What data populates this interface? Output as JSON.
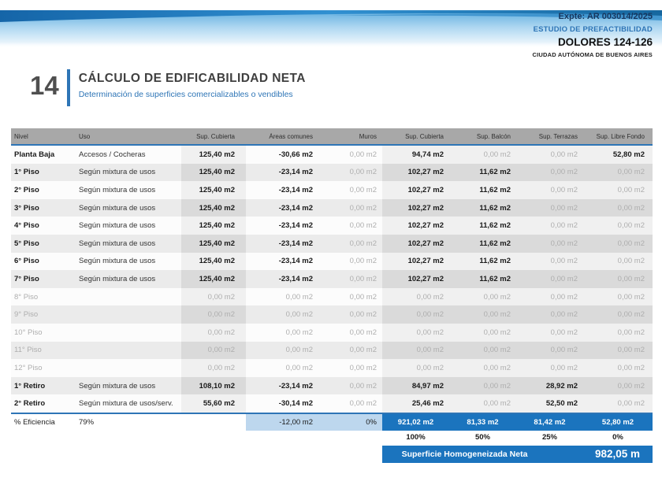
{
  "header": {
    "expte": "Expte: AR 003014/2025",
    "study_type": "ESTUDIO DE PREFACTIBILIDAD",
    "project": "DOLORES 124-126",
    "city": "CIUDAD AUTÓNOMA DE BUENOS AIRES"
  },
  "section": {
    "number": "14",
    "title": "CÁLCULO DE EDIFICABILIDAD NETA",
    "subtitle": "Determinación de superficies comercializables o vendibles"
  },
  "colors": {
    "accent_blue": "#2E75B6",
    "fill_blue": "#1B74BE",
    "light_blue": "#BDD7EE",
    "header_gray": "#A8A8A8"
  },
  "table": {
    "columns": [
      "Nivel",
      "Uso",
      "Sup. Cubierta",
      "Áreas comunes",
      "Muros",
      "Sup. Cubierta",
      "Sup. Balcón",
      "Sup. Terrazas",
      "Sup. Libre Fondo"
    ],
    "col_keys": [
      "nivel",
      "uso",
      "sup-cubierta",
      "areas-comunes",
      "muros",
      "sup-cubierta-2",
      "sup-balcon",
      "sup-terrazas",
      "sup-libre-fondo"
    ],
    "rows": [
      {
        "cells": [
          {
            "t": "Planta Baja",
            "s": "b"
          },
          {
            "t": "Accesos / Cocheras",
            "s": "n"
          },
          {
            "t": "125,40 m2",
            "s": "b"
          },
          {
            "t": "-30,66 m2",
            "s": "b"
          },
          {
            "t": "0,00 m2",
            "s": "m"
          },
          {
            "t": "94,74 m2",
            "s": "b"
          },
          {
            "t": "0,00 m2",
            "s": "m"
          },
          {
            "t": "0,00 m2",
            "s": "m"
          },
          {
            "t": "52,80 m2",
            "s": "b"
          }
        ]
      },
      {
        "cells": [
          {
            "t": "1° Piso",
            "s": "b"
          },
          {
            "t": "Según mixtura de usos",
            "s": "n"
          },
          {
            "t": "125,40 m2",
            "s": "b"
          },
          {
            "t": "-23,14 m2",
            "s": "b"
          },
          {
            "t": "0,00 m2",
            "s": "m"
          },
          {
            "t": "102,27 m2",
            "s": "b"
          },
          {
            "t": "11,62 m2",
            "s": "b"
          },
          {
            "t": "0,00 m2",
            "s": "m"
          },
          {
            "t": "0,00 m2",
            "s": "m"
          }
        ]
      },
      {
        "cells": [
          {
            "t": "2° Piso",
            "s": "b"
          },
          {
            "t": "Según mixtura de usos",
            "s": "n"
          },
          {
            "t": "125,40 m2",
            "s": "b"
          },
          {
            "t": "-23,14 m2",
            "s": "b"
          },
          {
            "t": "0,00 m2",
            "s": "m"
          },
          {
            "t": "102,27 m2",
            "s": "b"
          },
          {
            "t": "11,62 m2",
            "s": "b"
          },
          {
            "t": "0,00 m2",
            "s": "m"
          },
          {
            "t": "0,00 m2",
            "s": "m"
          }
        ]
      },
      {
        "cells": [
          {
            "t": "3° Piso",
            "s": "b"
          },
          {
            "t": "Según mixtura de usos",
            "s": "n"
          },
          {
            "t": "125,40 m2",
            "s": "b"
          },
          {
            "t": "-23,14 m2",
            "s": "b"
          },
          {
            "t": "0,00 m2",
            "s": "m"
          },
          {
            "t": "102,27 m2",
            "s": "b"
          },
          {
            "t": "11,62 m2",
            "s": "b"
          },
          {
            "t": "0,00 m2",
            "s": "m"
          },
          {
            "t": "0,00 m2",
            "s": "m"
          }
        ]
      },
      {
        "cells": [
          {
            "t": "4° Piso",
            "s": "b"
          },
          {
            "t": "Según mixtura de usos",
            "s": "n"
          },
          {
            "t": "125,40 m2",
            "s": "b"
          },
          {
            "t": "-23,14 m2",
            "s": "b"
          },
          {
            "t": "0,00 m2",
            "s": "m"
          },
          {
            "t": "102,27 m2",
            "s": "b"
          },
          {
            "t": "11,62 m2",
            "s": "b"
          },
          {
            "t": "0,00 m2",
            "s": "m"
          },
          {
            "t": "0,00 m2",
            "s": "m"
          }
        ]
      },
      {
        "cells": [
          {
            "t": "5° Piso",
            "s": "b"
          },
          {
            "t": "Según mixtura de usos",
            "s": "n"
          },
          {
            "t": "125,40 m2",
            "s": "b"
          },
          {
            "t": "-23,14 m2",
            "s": "b"
          },
          {
            "t": "0,00 m2",
            "s": "m"
          },
          {
            "t": "102,27 m2",
            "s": "b"
          },
          {
            "t": "11,62 m2",
            "s": "b"
          },
          {
            "t": "0,00 m2",
            "s": "m"
          },
          {
            "t": "0,00 m2",
            "s": "m"
          }
        ]
      },
      {
        "cells": [
          {
            "t": "6° Piso",
            "s": "b"
          },
          {
            "t": "Según mixtura de usos",
            "s": "n"
          },
          {
            "t": "125,40 m2",
            "s": "b"
          },
          {
            "t": "-23,14 m2",
            "s": "b"
          },
          {
            "t": "0,00 m2",
            "s": "m"
          },
          {
            "t": "102,27 m2",
            "s": "b"
          },
          {
            "t": "11,62 m2",
            "s": "b"
          },
          {
            "t": "0,00 m2",
            "s": "m"
          },
          {
            "t": "0,00 m2",
            "s": "m"
          }
        ]
      },
      {
        "cells": [
          {
            "t": "7° Piso",
            "s": "b"
          },
          {
            "t": "Según mixtura de usos",
            "s": "n"
          },
          {
            "t": "125,40 m2",
            "s": "b"
          },
          {
            "t": "-23,14 m2",
            "s": "b"
          },
          {
            "t": "0,00 m2",
            "s": "m"
          },
          {
            "t": "102,27 m2",
            "s": "b"
          },
          {
            "t": "11,62 m2",
            "s": "b"
          },
          {
            "t": "0,00 m2",
            "s": "m"
          },
          {
            "t": "0,00 m2",
            "s": "m"
          }
        ]
      },
      {
        "cells": [
          {
            "t": "8° Piso",
            "s": "m"
          },
          {
            "t": "",
            "s": "n"
          },
          {
            "t": "0,00 m2",
            "s": "m"
          },
          {
            "t": "0,00 m2",
            "s": "m"
          },
          {
            "t": "0,00 m2",
            "s": "m"
          },
          {
            "t": "0,00 m2",
            "s": "m"
          },
          {
            "t": "0,00 m2",
            "s": "m"
          },
          {
            "t": "0,00 m2",
            "s": "m"
          },
          {
            "t": "0,00 m2",
            "s": "m"
          }
        ]
      },
      {
        "cells": [
          {
            "t": "9° Piso",
            "s": "m"
          },
          {
            "t": "",
            "s": "n"
          },
          {
            "t": "0,00 m2",
            "s": "m"
          },
          {
            "t": "0,00 m2",
            "s": "m"
          },
          {
            "t": "0,00 m2",
            "s": "m"
          },
          {
            "t": "0,00 m2",
            "s": "m"
          },
          {
            "t": "0,00 m2",
            "s": "m"
          },
          {
            "t": "0,00 m2",
            "s": "m"
          },
          {
            "t": "0,00 m2",
            "s": "m"
          }
        ]
      },
      {
        "cells": [
          {
            "t": "10° Piso",
            "s": "m"
          },
          {
            "t": "",
            "s": "n"
          },
          {
            "t": "0,00 m2",
            "s": "m"
          },
          {
            "t": "0,00 m2",
            "s": "m"
          },
          {
            "t": "0,00 m2",
            "s": "m"
          },
          {
            "t": "0,00 m2",
            "s": "m"
          },
          {
            "t": "0,00 m2",
            "s": "m"
          },
          {
            "t": "0,00 m2",
            "s": "m"
          },
          {
            "t": "0,00 m2",
            "s": "m"
          }
        ]
      },
      {
        "cells": [
          {
            "t": "11° Piso",
            "s": "m"
          },
          {
            "t": "",
            "s": "n"
          },
          {
            "t": "0,00 m2",
            "s": "m"
          },
          {
            "t": "0,00 m2",
            "s": "m"
          },
          {
            "t": "0,00 m2",
            "s": "m"
          },
          {
            "t": "0,00 m2",
            "s": "m"
          },
          {
            "t": "0,00 m2",
            "s": "m"
          },
          {
            "t": "0,00 m2",
            "s": "m"
          },
          {
            "t": "0,00 m2",
            "s": "m"
          }
        ]
      },
      {
        "cells": [
          {
            "t": "12° Piso",
            "s": "m"
          },
          {
            "t": "",
            "s": "n"
          },
          {
            "t": "0,00 m2",
            "s": "m"
          },
          {
            "t": "0,00 m2",
            "s": "m"
          },
          {
            "t": "0,00 m2",
            "s": "m"
          },
          {
            "t": "0,00 m2",
            "s": "m"
          },
          {
            "t": "0,00 m2",
            "s": "m"
          },
          {
            "t": "0,00 m2",
            "s": "m"
          },
          {
            "t": "0,00 m2",
            "s": "m"
          }
        ]
      },
      {
        "cells": [
          {
            "t": "1° Retiro",
            "s": "b"
          },
          {
            "t": "Según mixtura de usos",
            "s": "n"
          },
          {
            "t": "108,10 m2",
            "s": "b"
          },
          {
            "t": "-23,14 m2",
            "s": "b"
          },
          {
            "t": "0,00 m2",
            "s": "m"
          },
          {
            "t": "84,97 m2",
            "s": "b"
          },
          {
            "t": "0,00 m2",
            "s": "m"
          },
          {
            "t": "28,92 m2",
            "s": "b"
          },
          {
            "t": "0,00 m2",
            "s": "m"
          }
        ]
      },
      {
        "cells": [
          {
            "t": "2° Retiro",
            "s": "b"
          },
          {
            "t": "Según mixtura de usos/serv.",
            "s": "n"
          },
          {
            "t": "55,60 m2",
            "s": "b"
          },
          {
            "t": "-30,14 m2",
            "s": "b"
          },
          {
            "t": "0,00 m2",
            "s": "m"
          },
          {
            "t": "25,46 m2",
            "s": "b"
          },
          {
            "t": "0,00 m2",
            "s": "m"
          },
          {
            "t": "52,50 m2",
            "s": "b"
          },
          {
            "t": "0,00 m2",
            "s": "m"
          }
        ]
      }
    ]
  },
  "efficiency": {
    "label": "% Eficiencia",
    "value": "79%",
    "areas_comunes": "-12,00 m2",
    "muros": "0%",
    "totals": [
      "921,02 m2",
      "81,33 m2",
      "81,42 m2",
      "52,80 m2"
    ],
    "percentages": [
      "100%",
      "50%",
      "25%",
      "0%"
    ]
  },
  "summary": {
    "label": "Superficie Homogeneizada Neta",
    "value": "982,05 m"
  }
}
